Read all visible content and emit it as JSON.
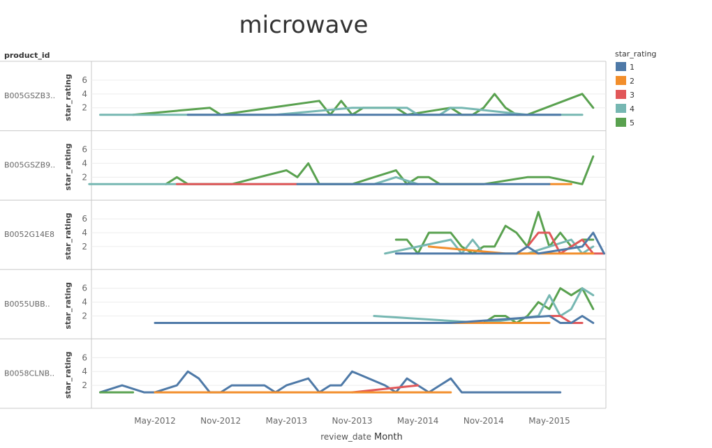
{
  "chart_data": {
    "type": "line",
    "title": "microwave",
    "row_header": "product_id",
    "xlabel_prefix": "review_date",
    "xlabel_unit": "Month",
    "ylabel": "star_rating",
    "ylim": [
      0,
      7
    ],
    "yticks": [
      2,
      4,
      6
    ],
    "xlim": [
      "2011-11",
      "2015-12"
    ],
    "xticks": [
      "May-2012",
      "Nov-2012",
      "May-2013",
      "Nov-2013",
      "May-2014",
      "Nov-2014",
      "May-2015"
    ],
    "legend": {
      "title": "star_rating",
      "position": "right",
      "items": [
        {
          "label": "1",
          "color": "#4e79a7"
        },
        {
          "label": "2",
          "color": "#f28e2b"
        },
        {
          "label": "3",
          "color": "#e15759"
        },
        {
          "label": "4",
          "color": "#76b7b2"
        },
        {
          "label": "5",
          "color": "#59a14f"
        }
      ]
    },
    "panels": [
      {
        "product_id": "B005GSZB3..",
        "series": [
          {
            "rating": "5",
            "points": [
              [
                "2012-03",
                1
              ],
              [
                "2012-10",
                2
              ],
              [
                "2012-11",
                1
              ],
              [
                "2013-08",
                3
              ],
              [
                "2013-09",
                1
              ],
              [
                "2013-10",
                3
              ],
              [
                "2013-11",
                1
              ],
              [
                "2013-12",
                2
              ],
              [
                "2014-03",
                2
              ],
              [
                "2014-04",
                1
              ],
              [
                "2014-08",
                2
              ],
              [
                "2014-09",
                1
              ],
              [
                "2014-10",
                1
              ],
              [
                "2014-11",
                2
              ],
              [
                "2014-12",
                4
              ],
              [
                "2015-01",
                2
              ],
              [
                "2015-02",
                1
              ],
              [
                "2015-03",
                1
              ],
              [
                "2015-08",
                4
              ],
              [
                "2015-09",
                2
              ]
            ]
          },
          {
            "rating": "4",
            "points": [
              [
                "2011-12",
                1
              ],
              [
                "2012-07",
                1
              ],
              [
                "2013-04",
                1
              ],
              [
                "2013-11",
                2
              ],
              [
                "2014-04",
                2
              ],
              [
                "2014-05",
                1
              ],
              [
                "2014-07",
                1
              ],
              [
                "2014-08",
                2
              ],
              [
                "2014-09",
                2
              ],
              [
                "2015-03",
                1
              ],
              [
                "2015-08",
                1
              ]
            ]
          },
          {
            "rating": "1",
            "points": [
              [
                "2012-08",
                1
              ],
              [
                "2015-06",
                1
              ]
            ]
          }
        ]
      },
      {
        "product_id": "B005GSZB9..",
        "series": [
          {
            "rating": "5",
            "points": [
              [
                "2012-06",
                1
              ],
              [
                "2012-07",
                2
              ],
              [
                "2012-08",
                1
              ],
              [
                "2012-12",
                1
              ],
              [
                "2013-05",
                3
              ],
              [
                "2013-06",
                2
              ],
              [
                "2013-07",
                4
              ],
              [
                "2013-08",
                1
              ],
              [
                "2013-11",
                1
              ],
              [
                "2014-01",
                2
              ],
              [
                "2014-03",
                3
              ],
              [
                "2014-04",
                1
              ],
              [
                "2014-05",
                2
              ],
              [
                "2014-06",
                2
              ],
              [
                "2014-07",
                1
              ],
              [
                "2014-11",
                1
              ],
              [
                "2015-03",
                2
              ],
              [
                "2015-05",
                2
              ],
              [
                "2015-08",
                1
              ],
              [
                "2015-09",
                5
              ]
            ]
          },
          {
            "rating": "4",
            "points": [
              [
                "2011-11",
                1
              ],
              [
                "2012-07",
                1
              ],
              [
                "2013-10",
                1
              ],
              [
                "2014-01",
                1
              ],
              [
                "2014-03",
                2
              ],
              [
                "2014-05",
                1
              ]
            ]
          },
          {
            "rating": "3",
            "points": [
              [
                "2012-07",
                1
              ],
              [
                "2013-06",
                1
              ]
            ]
          },
          {
            "rating": "2",
            "points": [
              [
                "2015-05",
                1
              ],
              [
                "2015-07",
                1
              ]
            ]
          },
          {
            "rating": "1",
            "points": [
              [
                "2013-06",
                1
              ],
              [
                "2015-05",
                1
              ]
            ]
          }
        ]
      },
      {
        "product_id": "B0052G14E8",
        "series": [
          {
            "rating": "5",
            "points": [
              [
                "2014-03",
                3
              ],
              [
                "2014-04",
                3
              ],
              [
                "2014-05",
                1
              ],
              [
                "2014-06",
                4
              ],
              [
                "2014-07",
                4
              ],
              [
                "2014-08",
                4
              ],
              [
                "2014-09",
                2
              ],
              [
                "2014-10",
                1
              ],
              [
                "2014-11",
                2
              ],
              [
                "2014-12",
                2
              ],
              [
                "2015-01",
                5
              ],
              [
                "2015-02",
                4
              ],
              [
                "2015-03",
                2
              ],
              [
                "2015-04",
                7
              ],
              [
                "2015-05",
                2
              ],
              [
                "2015-06",
                4
              ],
              [
                "2015-07",
                2
              ],
              [
                "2015-08",
                3
              ],
              [
                "2015-09",
                3
              ]
            ]
          },
          {
            "rating": "4",
            "points": [
              [
                "2014-02",
                1
              ],
              [
                "2014-08",
                3
              ],
              [
                "2014-09",
                1
              ],
              [
                "2014-10",
                3
              ],
              [
                "2014-11",
                1
              ],
              [
                "2015-03",
                1
              ],
              [
                "2015-05",
                2
              ],
              [
                "2015-07",
                3
              ],
              [
                "2015-08",
                1
              ],
              [
                "2015-09",
                2
              ]
            ]
          },
          {
            "rating": "3",
            "points": [
              [
                "2015-02",
                1
              ],
              [
                "2015-03",
                2
              ],
              [
                "2015-04",
                4
              ],
              [
                "2015-05",
                4
              ],
              [
                "2015-06",
                1
              ],
              [
                "2015-07",
                2
              ],
              [
                "2015-08",
                3
              ],
              [
                "2015-09",
                1
              ],
              [
                "2015-10",
                1
              ]
            ]
          },
          {
            "rating": "2",
            "points": [
              [
                "2014-06",
                2
              ],
              [
                "2015-01",
                1
              ],
              [
                "2015-09",
                1
              ]
            ]
          },
          {
            "rating": "1",
            "points": [
              [
                "2014-03",
                1
              ],
              [
                "2015-02",
                1
              ],
              [
                "2015-03",
                2
              ],
              [
                "2015-04",
                1
              ],
              [
                "2015-08",
                2
              ],
              [
                "2015-09",
                4
              ],
              [
                "2015-10",
                1
              ]
            ]
          }
        ]
      },
      {
        "product_id": "B0055UBB..",
        "series": [
          {
            "rating": "5",
            "points": [
              [
                "2014-11",
                1
              ],
              [
                "2014-12",
                2
              ],
              [
                "2015-01",
                2
              ],
              [
                "2015-02",
                1
              ],
              [
                "2015-03",
                2
              ],
              [
                "2015-04",
                4
              ],
              [
                "2015-05",
                3
              ],
              [
                "2015-06",
                6
              ],
              [
                "2015-07",
                5
              ],
              [
                "2015-08",
                6
              ],
              [
                "2015-09",
                3
              ]
            ]
          },
          {
            "rating": "4",
            "points": [
              [
                "2014-01",
                2
              ],
              [
                "2014-11",
                1
              ],
              [
                "2015-04",
                2
              ],
              [
                "2015-05",
                5
              ],
              [
                "2015-06",
                2
              ],
              [
                "2015-07",
                3
              ],
              [
                "2015-08",
                6
              ],
              [
                "2015-09",
                5
              ]
            ]
          },
          {
            "rating": "3",
            "points": [
              [
                "2015-05",
                2
              ],
              [
                "2015-06",
                2
              ],
              [
                "2015-07",
                1
              ],
              [
                "2015-08",
                1
              ]
            ]
          },
          {
            "rating": "2",
            "points": [
              [
                "2014-06",
                1
              ],
              [
                "2015-05",
                1
              ]
            ]
          },
          {
            "rating": "1",
            "points": [
              [
                "2012-05",
                1
              ],
              [
                "2014-08",
                1
              ],
              [
                "2015-05",
                2
              ],
              [
                "2015-06",
                1
              ],
              [
                "2015-07",
                1
              ],
              [
                "2015-08",
                2
              ],
              [
                "2015-09",
                1
              ]
            ]
          }
        ]
      },
      {
        "product_id": "B0058CLNB..",
        "series": [
          {
            "rating": "1",
            "points": [
              [
                "2011-12",
                1
              ],
              [
                "2012-02",
                2
              ],
              [
                "2012-04",
                1
              ],
              [
                "2012-05",
                1
              ],
              [
                "2012-07",
                2
              ],
              [
                "2012-08",
                4
              ],
              [
                "2012-09",
                3
              ],
              [
                "2012-10",
                1
              ],
              [
                "2012-11",
                1
              ],
              [
                "2012-12",
                2
              ],
              [
                "2013-02",
                2
              ],
              [
                "2013-03",
                2
              ],
              [
                "2013-04",
                1
              ],
              [
                "2013-05",
                2
              ],
              [
                "2013-07",
                3
              ],
              [
                "2013-08",
                1
              ],
              [
                "2013-09",
                2
              ],
              [
                "2013-10",
                2
              ],
              [
                "2013-11",
                4
              ],
              [
                "2014-02",
                2
              ],
              [
                "2014-03",
                1
              ],
              [
                "2014-04",
                3
              ],
              [
                "2014-05",
                2
              ],
              [
                "2014-06",
                1
              ],
              [
                "2014-08",
                3
              ],
              [
                "2014-09",
                1
              ],
              [
                "2015-06",
                1
              ]
            ]
          },
          {
            "rating": "5",
            "points": [
              [
                "2011-12",
                1
              ],
              [
                "2012-03",
                1
              ]
            ]
          },
          {
            "rating": "3",
            "points": [
              [
                "2013-11",
                1
              ],
              [
                "2014-05",
                2
              ]
            ]
          },
          {
            "rating": "2",
            "points": [
              [
                "2012-05",
                1
              ],
              [
                "2014-08",
                1
              ]
            ]
          }
        ]
      }
    ]
  }
}
